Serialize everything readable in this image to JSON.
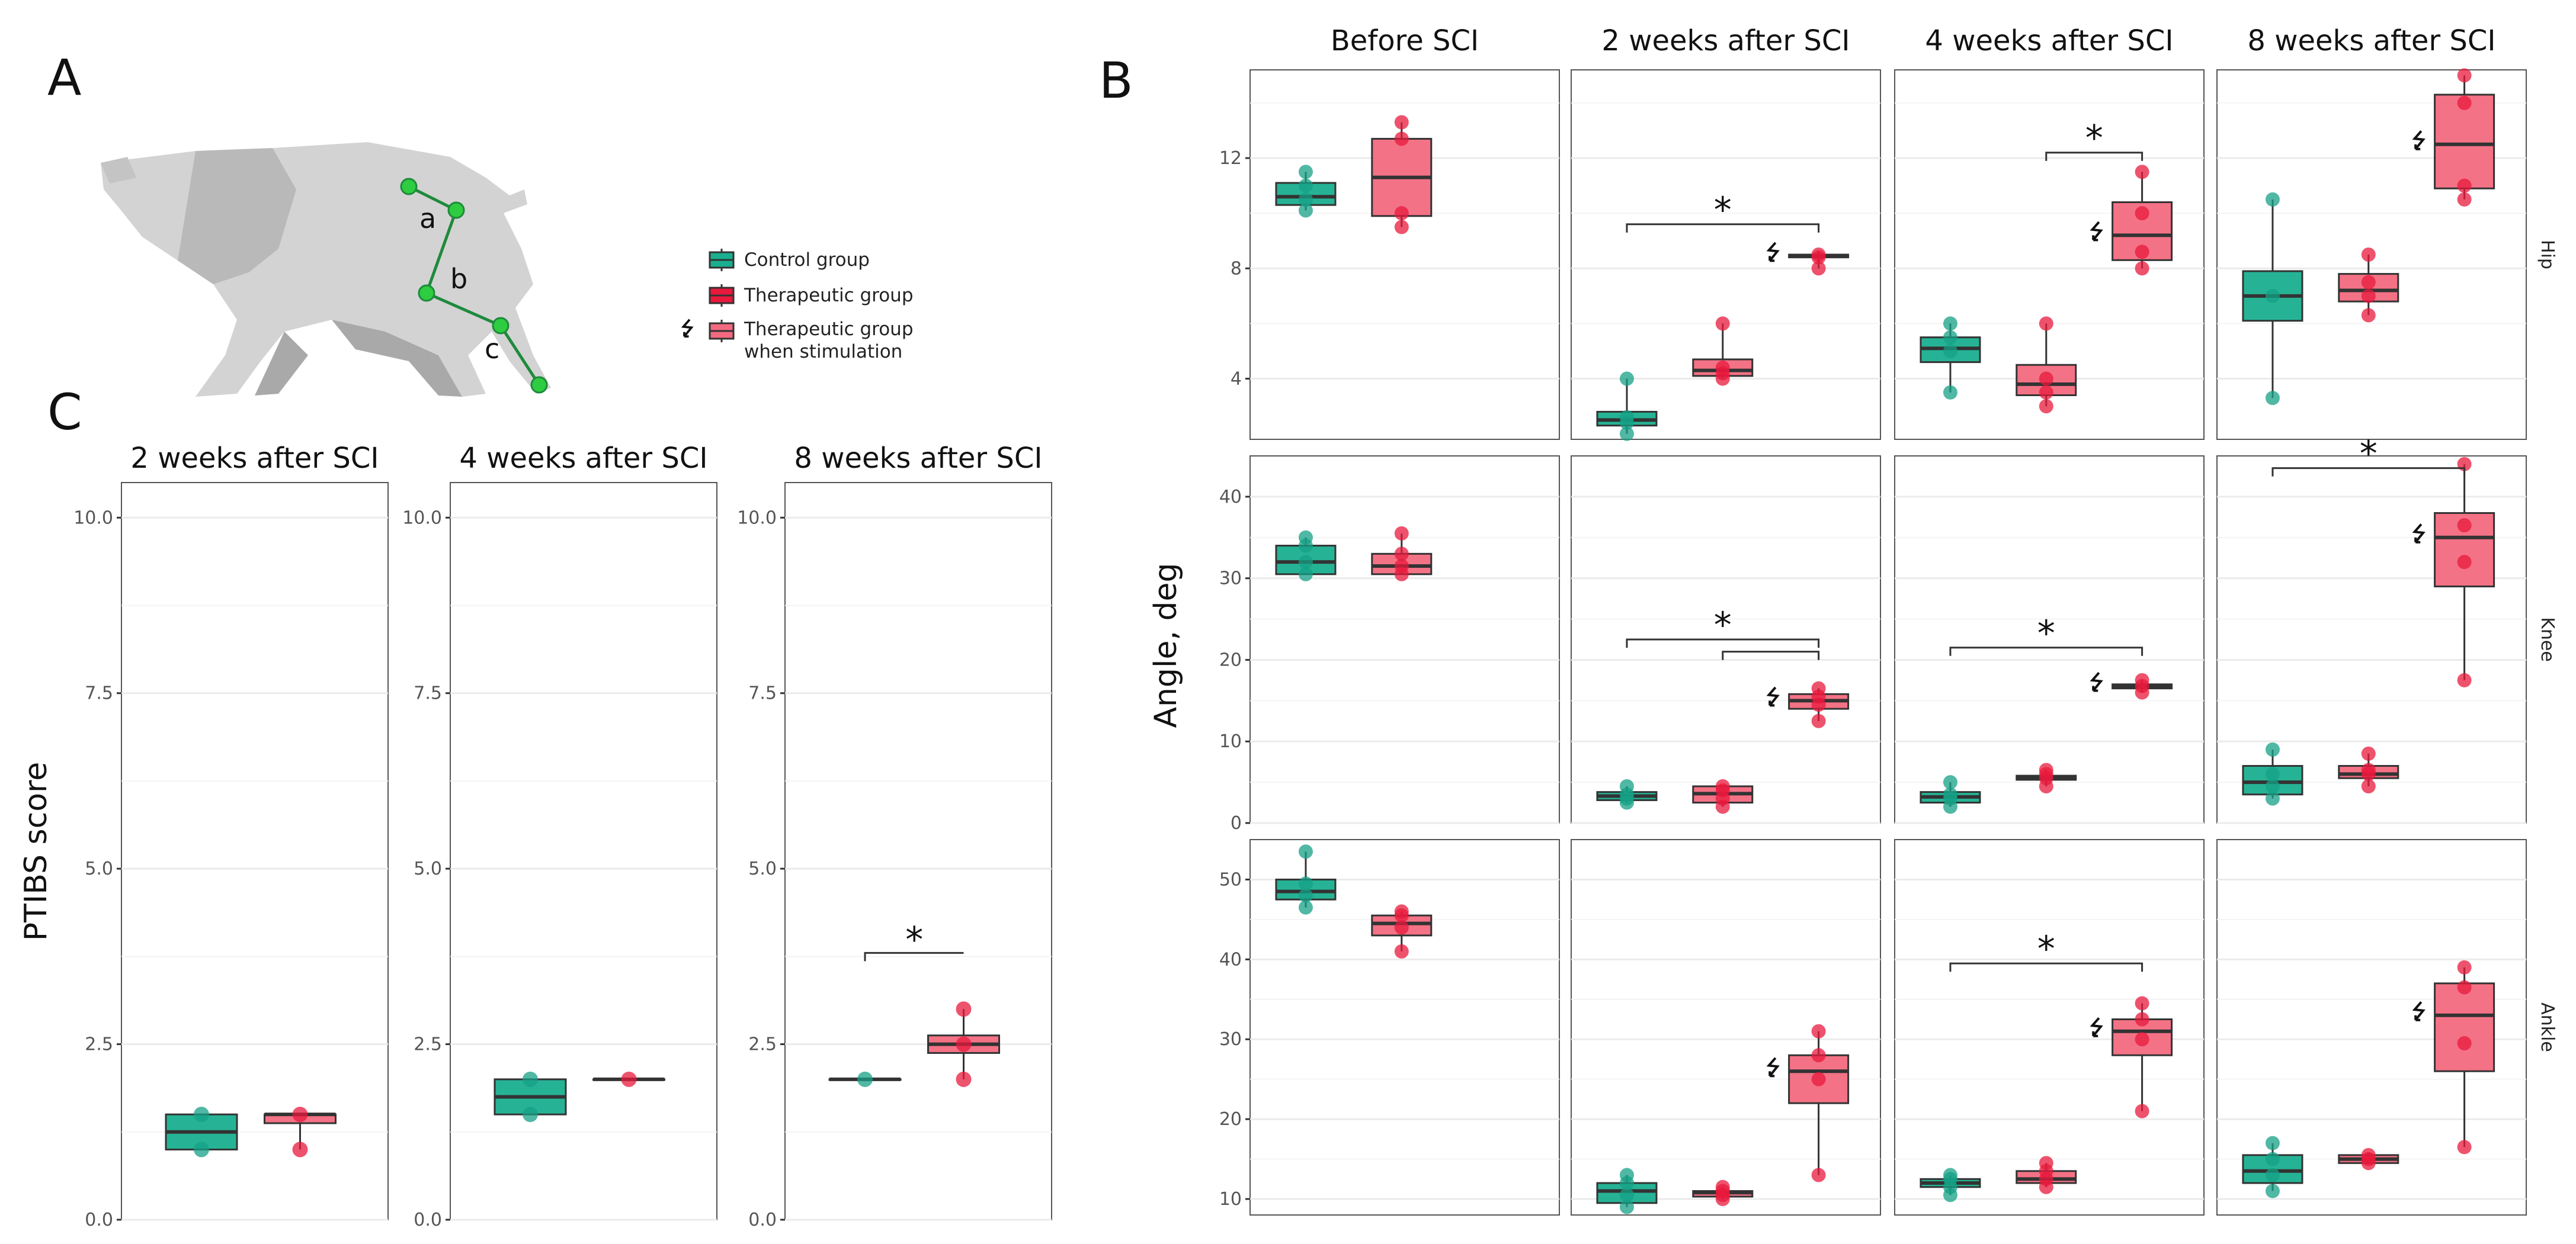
{
  "panels": {
    "A": "A",
    "B": "B",
    "C": "C"
  },
  "colors": {
    "control": "#16a085",
    "control_fill": "#1aaf8f",
    "therapeutic": "#e8193c",
    "therapeutic_fill": "#f36a80",
    "median": "#333333",
    "frame": "#555555",
    "grid": "#ebebeb"
  },
  "pig": {
    "joint_labels": [
      "a",
      "b",
      "c"
    ],
    "icon": "pig-silhouette-icon"
  },
  "legend": {
    "items": [
      {
        "label": "Control group",
        "icon": "control-box-icon"
      },
      {
        "label": "Therapeutic group",
        "icon": "therapeutic-box-icon"
      },
      {
        "label": "Therapeutic group",
        "label2": "when stimulation",
        "icon": "stimulation-arrow-icon"
      }
    ]
  },
  "chart_data": [
    {
      "id": "C",
      "type": "box",
      "title": "",
      "ylabel": "PTIBS score",
      "ylim": [
        0,
        10.5
      ],
      "yticks": [
        0,
        2.5,
        5,
        7.5,
        10
      ],
      "ytick_labels": [
        "0.0",
        "2.5",
        "5.0",
        "7.5",
        "10.0"
      ],
      "facets": [
        "2 weeks after SCI",
        "4 weeks after SCI",
        "8 weeks after SCI"
      ],
      "series": [
        {
          "facet": 0,
          "group": "Control group",
          "q1": 1.0,
          "median": 1.25,
          "q3": 1.5,
          "min": 1.0,
          "max": 1.5,
          "points": [
            1.0,
            1.5
          ]
        },
        {
          "facet": 0,
          "group": "Therapeutic group",
          "q1": 1.375,
          "median": 1.5,
          "q3": 1.5,
          "min": 1.0,
          "max": 1.5,
          "points": [
            1.0,
            1.5
          ]
        },
        {
          "facet": 1,
          "group": "Control group",
          "q1": 1.5,
          "median": 1.75,
          "q3": 2.0,
          "min": 1.5,
          "max": 2.0,
          "points": [
            1.5,
            2.0
          ]
        },
        {
          "facet": 1,
          "group": "Therapeutic group",
          "q1": 2.0,
          "median": 2.0,
          "q3": 2.0,
          "min": 2.0,
          "max": 2.0,
          "points": [
            2.0
          ]
        },
        {
          "facet": 2,
          "group": "Control group",
          "q1": 2.0,
          "median": 2.0,
          "q3": 2.0,
          "min": 2.0,
          "max": 2.0,
          "points": [
            2.0
          ]
        },
        {
          "facet": 2,
          "group": "Therapeutic group",
          "q1": 2.375,
          "median": 2.5,
          "q3": 2.625,
          "min": 2.0,
          "max": 3.0,
          "points": [
            2.0,
            2.5,
            3.0
          ]
        }
      ],
      "significance": [
        {
          "facet": 2,
          "from": "Control group",
          "to": "Therapeutic group",
          "y": 3.8,
          "label": "*"
        }
      ]
    },
    {
      "id": "B",
      "type": "box",
      "ylabel": "Angle, deg",
      "facets": [
        "Before SCI",
        "2 weeks after SCI",
        "4 weeks after SCI",
        "8 weeks after SCI"
      ],
      "rows": [
        {
          "name": "Hip",
          "ylim": [
            1.8,
            15.2
          ],
          "yticks": [
            4,
            8,
            12
          ],
          "ytick_labels": [
            "4",
            "8",
            "12"
          ]
        },
        {
          "name": "Knee",
          "ylim": [
            0,
            45
          ],
          "yticks": [
            0,
            10,
            20,
            30,
            40
          ],
          "ytick_labels": [
            "0",
            "10",
            "20",
            "30",
            "40"
          ]
        },
        {
          "name": "Ankle",
          "ylim": [
            8,
            55
          ],
          "yticks": [
            10,
            20,
            30,
            40,
            50
          ],
          "ytick_labels": [
            "10",
            "20",
            "30",
            "40",
            "50"
          ]
        }
      ],
      "series": [
        {
          "row": 0,
          "facet": 0,
          "pos": 1,
          "group": "Control group",
          "min": 10.1,
          "q1": 10.3,
          "median": 10.6,
          "q3": 11.1,
          "max": 11.5,
          "points": [
            10.1,
            10.5,
            11.0,
            11.5
          ]
        },
        {
          "row": 0,
          "facet": 0,
          "pos": 2,
          "group": "Therapeutic group",
          "min": 9.5,
          "q1": 9.9,
          "median": 11.3,
          "q3": 12.7,
          "max": 13.3,
          "points": [
            9.5,
            10.0,
            12.7,
            13.3
          ]
        },
        {
          "row": 0,
          "facet": 1,
          "pos": 1,
          "group": "Control group",
          "min": 2.0,
          "q1": 2.3,
          "median": 2.5,
          "q3": 2.8,
          "max": 4.0,
          "points": [
            2.0,
            2.4,
            2.6,
            4.0
          ]
        },
        {
          "row": 0,
          "facet": 1,
          "pos": 2,
          "group": "Therapeutic group",
          "min": 4.0,
          "q1": 4.1,
          "median": 4.3,
          "q3": 4.7,
          "max": 6.0,
          "points": [
            4.0,
            4.2,
            4.4,
            6.0
          ]
        },
        {
          "row": 0,
          "facet": 1,
          "pos": 3,
          "group": "Therapeutic group when stimulation",
          "min": 8.0,
          "q1": 8.4,
          "median": 8.45,
          "q3": 8.5,
          "max": 8.6,
          "points": [
            8.0,
            8.4,
            8.5
          ]
        },
        {
          "row": 0,
          "facet": 2,
          "pos": 1,
          "group": "Control group",
          "min": 3.5,
          "q1": 4.6,
          "median": 5.1,
          "q3": 5.5,
          "max": 6.0,
          "points": [
            3.5,
            5.0,
            5.5,
            6.0
          ]
        },
        {
          "row": 0,
          "facet": 2,
          "pos": 2,
          "group": "Therapeutic group",
          "min": 3.0,
          "q1": 3.4,
          "median": 3.8,
          "q3": 4.5,
          "max": 6.0,
          "points": [
            3.0,
            3.5,
            4.0,
            6.0
          ]
        },
        {
          "row": 0,
          "facet": 2,
          "pos": 3,
          "group": "Therapeutic group when stimulation",
          "min": 8.0,
          "q1": 8.3,
          "median": 9.2,
          "q3": 10.4,
          "max": 11.5,
          "points": [
            8.0,
            8.6,
            10.0,
            11.5
          ]
        },
        {
          "row": 0,
          "facet": 3,
          "pos": 1,
          "group": "Control group",
          "min": 3.3,
          "q1": 6.1,
          "median": 7.0,
          "q3": 7.9,
          "max": 10.5,
          "points": [
            3.3,
            7.0,
            10.5
          ]
        },
        {
          "row": 0,
          "facet": 3,
          "pos": 2,
          "group": "Therapeutic group",
          "min": 6.3,
          "q1": 6.8,
          "median": 7.2,
          "q3": 7.8,
          "max": 8.5,
          "points": [
            6.3,
            7.0,
            7.5,
            8.5
          ]
        },
        {
          "row": 0,
          "facet": 3,
          "pos": 3,
          "group": "Therapeutic group when stimulation",
          "min": 10.5,
          "q1": 10.9,
          "median": 12.5,
          "q3": 14.3,
          "max": 15.0,
          "points": [
            10.5,
            11.0,
            14.0,
            15.0
          ]
        },
        {
          "row": 1,
          "facet": 0,
          "pos": 1,
          "group": "Control group",
          "min": 30.5,
          "q1": 30.5,
          "median": 32.0,
          "q3": 34.0,
          "max": 35.0,
          "points": [
            30.5,
            32.0,
            34.0,
            35.0
          ]
        },
        {
          "row": 1,
          "facet": 0,
          "pos": 2,
          "group": "Therapeutic group",
          "min": 30.5,
          "q1": 30.5,
          "median": 31.5,
          "q3": 33.0,
          "max": 35.5,
          "points": [
            30.5,
            31.5,
            33.0,
            35.5
          ]
        },
        {
          "row": 1,
          "facet": 1,
          "pos": 1,
          "group": "Control group",
          "min": 2.5,
          "q1": 2.8,
          "median": 3.3,
          "q3": 3.8,
          "max": 4.5,
          "points": [
            2.5,
            3.0,
            3.5,
            4.5
          ]
        },
        {
          "row": 1,
          "facet": 1,
          "pos": 2,
          "group": "Therapeutic group",
          "min": 2.0,
          "q1": 2.5,
          "median": 3.6,
          "q3": 4.5,
          "max": 4.5,
          "points": [
            2.0,
            3.0,
            4.0,
            4.5
          ]
        },
        {
          "row": 1,
          "facet": 1,
          "pos": 3,
          "group": "Therapeutic group when stimulation",
          "min": 12.5,
          "q1": 14.0,
          "median": 15.0,
          "q3": 15.8,
          "max": 16.5,
          "points": [
            12.5,
            14.5,
            15.5,
            16.5
          ]
        },
        {
          "row": 1,
          "facet": 2,
          "pos": 1,
          "group": "Control group",
          "min": 2.0,
          "q1": 2.5,
          "median": 3.2,
          "q3": 3.8,
          "max": 5.0,
          "points": [
            2.0,
            3.0,
            3.5,
            5.0
          ]
        },
        {
          "row": 1,
          "facet": 2,
          "pos": 2,
          "group": "Therapeutic group",
          "min": 4.5,
          "q1": 5.3,
          "median": 5.5,
          "q3": 5.8,
          "max": 6.5,
          "points": [
            4.5,
            5.5,
            6.0,
            6.5
          ]
        },
        {
          "row": 1,
          "facet": 2,
          "pos": 3,
          "group": "Therapeutic group when stimulation",
          "min": 16.0,
          "q1": 16.5,
          "median": 16.8,
          "q3": 17.0,
          "max": 17.5,
          "points": [
            16.0,
            16.8,
            17.5
          ]
        },
        {
          "row": 1,
          "facet": 3,
          "pos": 1,
          "group": "Control group",
          "min": 3.0,
          "q1": 3.5,
          "median": 5.0,
          "q3": 7.0,
          "max": 9.0,
          "points": [
            3.0,
            4.5,
            6.0,
            9.0
          ]
        },
        {
          "row": 1,
          "facet": 3,
          "pos": 2,
          "group": "Therapeutic group",
          "min": 4.5,
          "q1": 5.5,
          "median": 6.0,
          "q3": 7.0,
          "max": 8.5,
          "points": [
            4.5,
            6.0,
            6.5,
            8.5
          ]
        },
        {
          "row": 1,
          "facet": 3,
          "pos": 3,
          "group": "Therapeutic group when stimulation",
          "min": 17.5,
          "q1": 29.0,
          "median": 35.0,
          "q3": 38.0,
          "max": 44.0,
          "points": [
            17.5,
            32.0,
            36.5,
            44.0
          ]
        },
        {
          "row": 2,
          "facet": 0,
          "pos": 1,
          "group": "Control group",
          "min": 46.5,
          "q1": 47.5,
          "median": 48.5,
          "q3": 50.0,
          "max": 53.5,
          "points": [
            46.5,
            48.0,
            49.5,
            53.5
          ]
        },
        {
          "row": 2,
          "facet": 0,
          "pos": 2,
          "group": "Therapeutic group",
          "min": 41.0,
          "q1": 43.0,
          "median": 44.5,
          "q3": 45.5,
          "max": 46.0,
          "points": [
            41.0,
            44.0,
            45.5,
            46.0
          ]
        },
        {
          "row": 2,
          "facet": 1,
          "pos": 1,
          "group": "Control group",
          "min": 9.0,
          "q1": 9.5,
          "median": 11.0,
          "q3": 12.0,
          "max": 13.0,
          "points": [
            9.0,
            10.5,
            12.0,
            13.0
          ]
        },
        {
          "row": 2,
          "facet": 1,
          "pos": 2,
          "group": "Therapeutic group",
          "min": 10.0,
          "q1": 10.3,
          "median": 10.8,
          "q3": 11.0,
          "max": 11.5,
          "points": [
            10.0,
            10.5,
            11.0,
            11.5
          ]
        },
        {
          "row": 2,
          "facet": 1,
          "pos": 3,
          "group": "Therapeutic group when stimulation",
          "min": 13.0,
          "q1": 22.0,
          "median": 26.0,
          "q3": 28.0,
          "max": 31.0,
          "points": [
            13.0,
            25.0,
            28.0,
            31.0
          ]
        },
        {
          "row": 2,
          "facet": 2,
          "pos": 1,
          "group": "Control group",
          "min": 10.5,
          "q1": 11.5,
          "median": 12.0,
          "q3": 12.5,
          "max": 13.0,
          "points": [
            10.5,
            11.5,
            12.5,
            13.0
          ]
        },
        {
          "row": 2,
          "facet": 2,
          "pos": 2,
          "group": "Therapeutic group",
          "min": 11.5,
          "q1": 12.0,
          "median": 12.5,
          "q3": 13.5,
          "max": 14.5,
          "points": [
            11.5,
            12.5,
            13.5,
            14.5
          ]
        },
        {
          "row": 2,
          "facet": 2,
          "pos": 3,
          "group": "Therapeutic group when stimulation",
          "min": 21.0,
          "q1": 28.0,
          "median": 31.0,
          "q3": 32.5,
          "max": 34.5,
          "points": [
            21.0,
            30.0,
            32.5,
            34.5
          ]
        },
        {
          "row": 2,
          "facet": 3,
          "pos": 1,
          "group": "Control group",
          "min": 11.0,
          "q1": 12.0,
          "median": 13.5,
          "q3": 15.5,
          "max": 17.0,
          "points": [
            11.0,
            13.0,
            15.0,
            17.0
          ]
        },
        {
          "row": 2,
          "facet": 3,
          "pos": 2,
          "group": "Therapeutic group",
          "min": 14.5,
          "q1": 14.5,
          "median": 15.0,
          "q3": 15.5,
          "max": 15.8,
          "points": [
            14.5,
            15.0,
            15.5
          ]
        },
        {
          "row": 2,
          "facet": 3,
          "pos": 3,
          "group": "Therapeutic group when stimulation",
          "min": 16.5,
          "q1": 26.0,
          "median": 33.0,
          "q3": 37.0,
          "max": 39.0,
          "points": [
            16.5,
            29.5,
            36.5,
            39.0
          ]
        }
      ],
      "significance": [
        {
          "row": 0,
          "facet": 1,
          "from": 1,
          "to": 3,
          "y": 9.6,
          "label": "*"
        },
        {
          "row": 0,
          "facet": 2,
          "from": 2,
          "to": 3,
          "y": 12.2,
          "label": "*"
        },
        {
          "row": 1,
          "facet": 1,
          "from": 1,
          "to": 3,
          "y": 22.5,
          "label": "*"
        },
        {
          "row": 1,
          "facet": 1,
          "from": 2,
          "to": 3,
          "y": 21.0,
          "label": ""
        },
        {
          "row": 1,
          "facet": 2,
          "from": 1,
          "to": 3,
          "y": 21.5,
          "label": "*"
        },
        {
          "row": 1,
          "facet": 3,
          "from": 1,
          "to": 3,
          "y": 43.5,
          "label": "*"
        },
        {
          "row": 2,
          "facet": 2,
          "from": 1,
          "to": 3,
          "y": 39.5,
          "label": "*"
        }
      ]
    }
  ]
}
